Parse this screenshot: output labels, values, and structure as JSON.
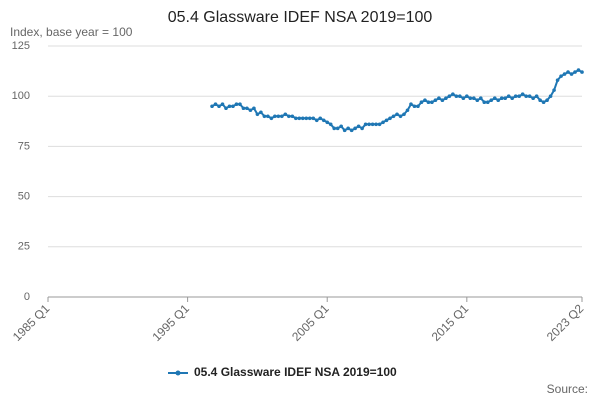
{
  "chart_data": {
    "type": "line",
    "title": "05.4 Glassware IDEF NSA 2019=100",
    "y_label": "Index, base year = 100",
    "source": "Source:",
    "categories": [
      "1985 Q1",
      null,
      null,
      null,
      null,
      null,
      null,
      null,
      null,
      null,
      null,
      null,
      null,
      null,
      null,
      null,
      null,
      null,
      null,
      null,
      null,
      null,
      null,
      null,
      null,
      null,
      null,
      null,
      null,
      null,
      null,
      null,
      null,
      null,
      null,
      null,
      null,
      null,
      null,
      null,
      "1995 Q1",
      null,
      null,
      null,
      null,
      null,
      null,
      null,
      null,
      null,
      null,
      null,
      null,
      null,
      null,
      null,
      null,
      null,
      null,
      null,
      null,
      null,
      null,
      null,
      null,
      null,
      null,
      null,
      null,
      null,
      null,
      null,
      null,
      null,
      null,
      null,
      null,
      null,
      null,
      null,
      "2005 Q1",
      null,
      null,
      null,
      null,
      null,
      null,
      null,
      null,
      null,
      null,
      null,
      null,
      null,
      null,
      null,
      null,
      null,
      null,
      null,
      null,
      null,
      null,
      null,
      null,
      null,
      null,
      null,
      null,
      null,
      null,
      null,
      null,
      null,
      null,
      null,
      null,
      null,
      null,
      null,
      "2015 Q1",
      null,
      null,
      null,
      null,
      null,
      null,
      null,
      null,
      null,
      null,
      null,
      null,
      null,
      null,
      null,
      null,
      null,
      null,
      null,
      null,
      null,
      null,
      null,
      null,
      null,
      null,
      null,
      null,
      null,
      null,
      null,
      null,
      "2023 Q2"
    ],
    "series": [
      {
        "name": "05.4 Glassware IDEF NSA 2019=100",
        "color": "#1f77b4",
        "values": [
          null,
          null,
          null,
          null,
          null,
          null,
          null,
          null,
          null,
          null,
          null,
          null,
          null,
          null,
          null,
          null,
          null,
          null,
          null,
          null,
          null,
          null,
          null,
          null,
          null,
          null,
          null,
          null,
          null,
          null,
          null,
          null,
          null,
          null,
          null,
          null,
          null,
          null,
          null,
          null,
          null,
          null,
          null,
          null,
          null,
          null,
          null,
          95,
          96,
          95,
          96,
          94,
          95,
          95,
          96,
          96,
          94,
          94,
          93,
          94,
          91,
          92,
          90,
          90,
          89,
          90,
          90,
          90,
          91,
          90,
          90,
          89,
          89,
          89,
          89,
          89,
          89,
          88,
          89,
          88,
          87,
          86,
          84,
          84,
          85,
          83,
          84,
          83,
          84,
          85,
          84,
          86,
          86,
          86,
          86,
          86,
          87,
          88,
          89,
          90,
          91,
          90,
          91,
          93,
          96,
          95,
          95,
          97,
          98,
          97,
          97,
          98,
          99,
          98,
          99,
          100,
          101,
          100,
          100,
          99,
          100,
          99,
          99,
          98,
          99,
          97,
          97,
          98,
          99,
          98,
          99,
          99,
          100,
          99,
          100,
          100,
          101,
          100,
          100,
          99,
          100,
          98,
          97,
          98,
          100,
          103,
          108,
          110,
          111,
          112,
          111,
          112,
          113,
          112
        ]
      }
    ],
    "ylim": [
      0,
      125
    ],
    "yticks": [
      0,
      25,
      50,
      75,
      100,
      125
    ],
    "grid": true
  }
}
